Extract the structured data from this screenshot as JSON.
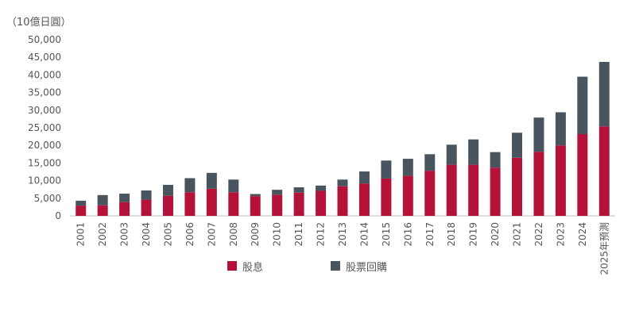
{
  "chart_data": {
    "type": "bar",
    "stacked": true,
    "unit_label": "（10億日圓）",
    "categories": [
      "2001",
      "2002",
      "2003",
      "2004",
      "2005",
      "2006",
      "2007",
      "2008",
      "2009",
      "2010",
      "2011",
      "2012",
      "2013",
      "2014",
      "2015",
      "2016",
      "2017",
      "2018",
      "2019",
      "2020",
      "2021",
      "2022",
      "2023",
      "2024",
      "2025年預測"
    ],
    "series": [
      {
        "name": "股息",
        "color": "#b5123a",
        "values": [
          2900,
          3000,
          3900,
          4600,
          5700,
          6700,
          7700,
          6700,
          5600,
          6000,
          6600,
          7100,
          8400,
          9200,
          10600,
          11400,
          12800,
          14500,
          14500,
          13700,
          16500,
          18200,
          20000,
          23200,
          25400
        ]
      },
      {
        "name": "股票回購",
        "color": "#48555f",
        "values": [
          1400,
          2900,
          2400,
          2600,
          3100,
          4000,
          4500,
          3600,
          600,
          1400,
          1500,
          1500,
          1900,
          3400,
          5100,
          4800,
          4700,
          5700,
          7200,
          4400,
          7100,
          9700,
          9400,
          16300,
          18300
        ]
      }
    ],
    "y_ticks": [
      "0",
      "5,000",
      "10,000",
      "15,000",
      "20,000",
      "25,000",
      "30,000",
      "35,000",
      "40,000",
      "45,000",
      "50,000"
    ],
    "ylim": [
      0,
      50000
    ],
    "grid": false,
    "legend_position": "bottom-center"
  }
}
